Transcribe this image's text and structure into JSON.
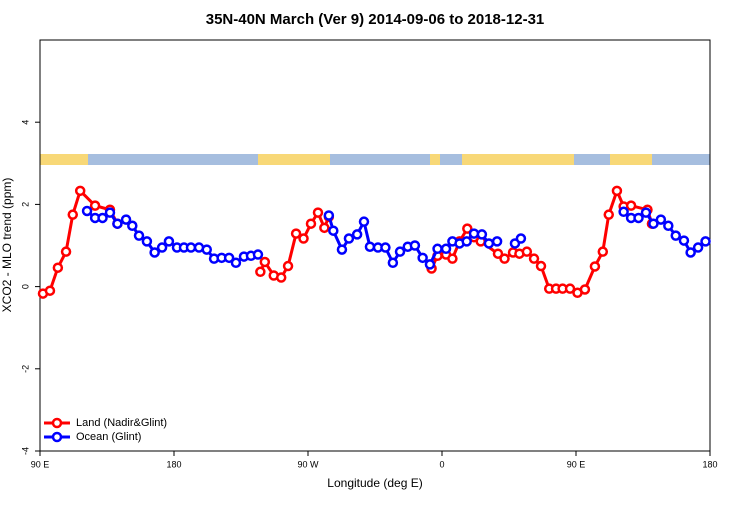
{
  "chart_data": {
    "type": "line",
    "title": "35N-40N March (Ver 9)   2014-09-06 to 2018-12-31",
    "x_label": "Longitude (deg E)",
    "y_label": "XCO2 - MLO trend (ppm)",
    "xlim": [
      90,
      540
    ],
    "ylim": [
      -4,
      6
    ],
    "xticks": [
      {
        "value": 90,
        "label": "90 E"
      },
      180,
      {
        "value": 270,
        "label": "90 W"
      },
      {
        "value": 360,
        "label": "0"
      },
      {
        "value": 450,
        "label": "90 E"
      },
      {
        "value": 540,
        "label": "180"
      }
    ],
    "yticks": [
      -4,
      -2,
      0,
      2,
      4
    ],
    "legend": "bottom-left",
    "series": [
      {
        "name": "Land (Nadir&Glint)",
        "color": "#ff0000",
        "x": [
          92,
          96.7,
          102,
          107.5,
          112,
          117,
          127,
          137,
          142,
          null,
          238,
          241,
          247,
          252,
          256.6,
          262,
          267,
          272,
          276.7,
          281,
          284,
          null,
          353,
          357,
          362.7,
          367,
          371.8,
          377,
          381.5,
          386,
          397.6,
          402,
          407.7,
          412,
          417,
          421.8,
          426.5,
          432,
          436.6,
          441,
          446,
          451,
          456,
          462.7,
          468,
          472,
          477.5,
          482,
          487,
          498,
          501
        ],
        "values": [
          -0.17,
          -0.1,
          0.46,
          0.85,
          1.75,
          2.33,
          1.97,
          1.87,
          1.53,
          null,
          0.36,
          0.6,
          0.27,
          0.22,
          0.5,
          1.29,
          1.17,
          1.53,
          1.8,
          1.43,
          1.7,
          null,
          0.44,
          0.75,
          0.78,
          0.68,
          1.1,
          1.41,
          1.2,
          1.1,
          0.8,
          0.68,
          0.83,
          0.8,
          0.85,
          0.68,
          0.5,
          -0.05,
          -0.05,
          -0.05,
          -0.05,
          -0.15,
          -0.07,
          0.49,
          0.85,
          1.75,
          2.33,
          1.95,
          1.97,
          1.87,
          1.53
        ]
      },
      {
        "name": "Ocean (Glint)",
        "color": "#0000ff",
        "x": [
          121.6,
          127,
          132,
          137,
          142,
          147.8,
          152,
          156.5,
          161.8,
          167,
          172,
          176.6,
          182,
          186.7,
          191.4,
          196.8,
          202,
          206.9,
          212,
          217,
          221.6,
          227,
          231.7,
          236.4,
          null,
          284,
          287,
          292.8,
          297.5,
          303,
          307.6,
          311.6,
          317,
          322,
          327,
          331.8,
          337,
          341.8,
          347,
          351.9,
          357,
          362.7,
          367,
          371.8,
          376.6,
          381.5,
          386.8,
          391.5,
          397,
          null,
          409,
          413,
          null,
          482,
          487,
          492,
          497,
          502,
          507,
          512,
          517,
          522.5,
          527,
          532,
          537
        ],
        "values": [
          1.84,
          1.67,
          1.67,
          1.8,
          1.53,
          1.63,
          1.48,
          1.24,
          1.1,
          0.83,
          0.95,
          1.1,
          0.95,
          0.95,
          0.95,
          0.95,
          0.9,
          0.68,
          0.7,
          0.7,
          0.58,
          0.73,
          0.75,
          0.78,
          null,
          1.73,
          1.36,
          0.9,
          1.17,
          1.27,
          1.58,
          0.97,
          0.95,
          0.95,
          0.58,
          0.85,
          0.97,
          1.0,
          0.7,
          0.54,
          0.92,
          0.92,
          1.1,
          1.05,
          1.1,
          1.29,
          1.27,
          1.05,
          1.1,
          null,
          1.05,
          1.17,
          null,
          1.82,
          1.67,
          1.67,
          1.8,
          1.53,
          1.63,
          1.48,
          1.24,
          1.12,
          0.83,
          0.95,
          1.1
        ]
      }
    ]
  }
}
